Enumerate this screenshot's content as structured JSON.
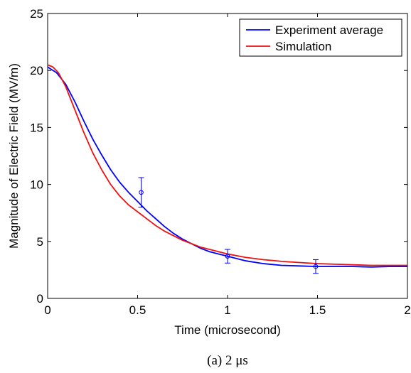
{
  "chart_data": {
    "type": "line",
    "title": "",
    "xlabel": "Time (microsecond)",
    "ylabel": "Magnitude of Electric Field (MV/m)",
    "xlim": [
      0,
      2
    ],
    "ylim": [
      0,
      25
    ],
    "xticks": [
      0,
      0.5,
      1,
      1.5,
      2
    ],
    "xtick_labels": [
      "0",
      "0.5",
      "1",
      "1.5",
      "2"
    ],
    "yticks": [
      0,
      5,
      10,
      15,
      20,
      25
    ],
    "ytick_labels": [
      "0",
      "5",
      "10",
      "15",
      "20",
      "25"
    ],
    "grid": false,
    "legend_position": "top-right",
    "series": [
      {
        "name": "Experiment average",
        "color": "#0000ff",
        "x": [
          0,
          0.05,
          0.1,
          0.15,
          0.2,
          0.25,
          0.3,
          0.35,
          0.4,
          0.45,
          0.5,
          0.55,
          0.6,
          0.65,
          0.7,
          0.75,
          0.8,
          0.85,
          0.9,
          0.95,
          1.0,
          1.05,
          1.1,
          1.2,
          1.3,
          1.4,
          1.5,
          1.6,
          1.7,
          1.8,
          1.9,
          2.0
        ],
        "y": [
          20.3,
          19.8,
          18.8,
          17.3,
          15.6,
          14.0,
          12.6,
          11.3,
          10.2,
          9.3,
          8.5,
          7.7,
          7.0,
          6.3,
          5.7,
          5.2,
          4.8,
          4.4,
          4.1,
          3.9,
          3.7,
          3.5,
          3.3,
          3.05,
          2.9,
          2.85,
          2.8,
          2.8,
          2.8,
          2.75,
          2.8,
          2.8
        ]
      },
      {
        "name": "Simulation",
        "color": "#ee1111",
        "x": [
          0,
          0.03,
          0.06,
          0.1,
          0.15,
          0.2,
          0.25,
          0.3,
          0.35,
          0.4,
          0.45,
          0.5,
          0.55,
          0.6,
          0.65,
          0.7,
          0.75,
          0.8,
          0.85,
          0.9,
          0.95,
          1.0,
          1.1,
          1.2,
          1.3,
          1.4,
          1.5,
          1.6,
          1.7,
          1.8,
          1.9,
          2.0
        ],
        "y": [
          20.5,
          20.3,
          19.8,
          18.6,
          16.6,
          14.6,
          12.8,
          11.3,
          10.0,
          9.0,
          8.2,
          7.6,
          7.0,
          6.4,
          5.9,
          5.5,
          5.1,
          4.8,
          4.5,
          4.3,
          4.1,
          3.9,
          3.6,
          3.4,
          3.25,
          3.15,
          3.05,
          3.0,
          2.95,
          2.9,
          2.9,
          2.9
        ]
      }
    ],
    "error_bars": [
      {
        "x": 0.52,
        "y": 9.3,
        "low": 8.0,
        "high": 10.6
      },
      {
        "x": 1.0,
        "y": 3.7,
        "low": 3.1,
        "high": 4.3
      },
      {
        "x": 1.49,
        "y": 2.8,
        "low": 2.2,
        "high": 3.4
      }
    ],
    "caption": "(a) 2 μs"
  }
}
